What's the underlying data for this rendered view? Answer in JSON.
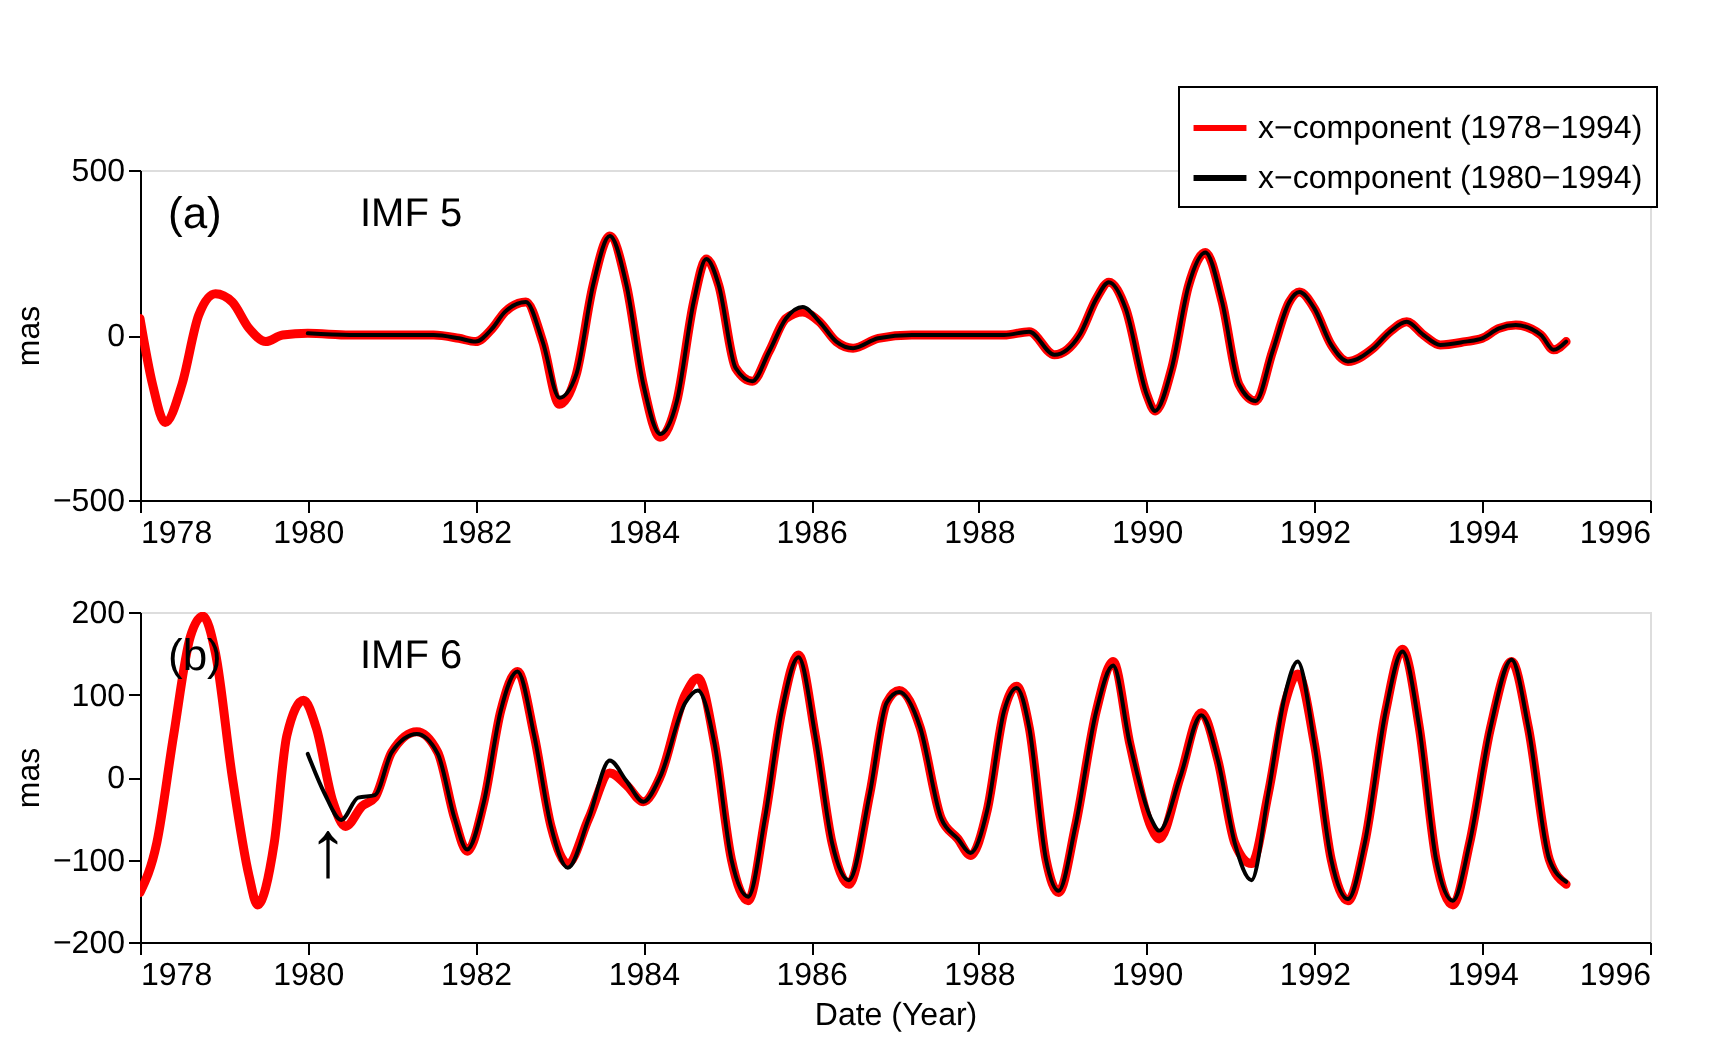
{
  "chart_data": [
    {
      "type": "line",
      "ylabel": "mas",
      "xlim": [
        1978,
        1996
      ],
      "xticks": [
        1978,
        1980,
        1982,
        1984,
        1986,
        1988,
        1990,
        1992,
        1994,
        1996
      ],
      "ylim": [
        -500,
        500
      ],
      "yticks": [
        -500,
        0,
        500
      ],
      "grid": false,
      "legend": "top right",
      "line_style": "solid",
      "marker": "none",
      "annotations": [
        "(a)",
        "IMF 5"
      ],
      "series": [
        {
          "name": "x−component (1978−1994)",
          "color": "#ff0000",
          "x": [
            1978.0,
            1978.15,
            1978.3,
            1978.5,
            1978.7,
            1978.9,
            1979.1,
            1979.3,
            1979.5,
            1979.7,
            1980.0,
            1980.5,
            1981.0,
            1981.5,
            1981.8,
            1982.0,
            1982.2,
            1982.35,
            1982.6,
            1982.8,
            1983.0,
            1983.2,
            1983.4,
            1983.6,
            1983.8,
            1984.0,
            1984.2,
            1984.4,
            1984.6,
            1984.75,
            1984.9,
            1985.1,
            1985.3,
            1985.5,
            1985.7,
            1985.9,
            1986.1,
            1986.3,
            1986.5,
            1986.8,
            1987.2,
            1987.8,
            1988.3,
            1988.6,
            1988.9,
            1989.2,
            1989.4,
            1989.55,
            1989.75,
            1990.0,
            1990.1,
            1990.3,
            1990.5,
            1990.7,
            1990.9,
            1991.1,
            1991.3,
            1991.5,
            1991.7,
            1991.82,
            1992.0,
            1992.2,
            1992.4,
            1992.7,
            1992.9,
            1993.1,
            1993.3,
            1993.5,
            1993.8,
            1994.0,
            1994.2,
            1994.4,
            1994.7,
            1994.85,
            1995.0
          ],
          "values": [
            50,
            -150,
            -265,
            -150,
            60,
            125,
            100,
            20,
            -20,
            0,
            5,
            0,
            0,
            0,
            -10,
            -20,
            20,
            70,
            100,
            -20,
            -210,
            -120,
            150,
            300,
            150,
            -150,
            -310,
            -200,
            100,
            230,
            150,
            -100,
            -140,
            -50,
            50,
            70,
            40,
            -20,
            -40,
            -10,
            0,
            0,
            0,
            10,
            -60,
            0,
            110,
            160,
            80,
            -180,
            -230,
            -100,
            150,
            250,
            100,
            -150,
            -200,
            -50,
            100,
            130,
            80,
            -30,
            -80,
            -40,
            10,
            40,
            0,
            -30,
            -20,
            -10,
            20,
            30,
            0,
            -45,
            -20
          ]
        },
        {
          "name": "x−component (1980−1994)",
          "color": "#000000",
          "x": [
            1980.0,
            1980.5,
            1981.0,
            1981.5,
            1981.8,
            1982.0,
            1982.2,
            1982.35,
            1982.6,
            1982.8,
            1983.0,
            1983.2,
            1983.4,
            1983.6,
            1983.8,
            1984.0,
            1984.2,
            1984.4,
            1984.6,
            1984.75,
            1984.9,
            1985.1,
            1985.3,
            1985.5,
            1985.7,
            1985.9,
            1986.1,
            1986.3,
            1986.5,
            1986.8,
            1987.2,
            1987.8,
            1988.3,
            1988.6,
            1988.9,
            1989.2,
            1989.4,
            1989.55,
            1989.75,
            1990.0,
            1990.1,
            1990.3,
            1990.5,
            1990.7,
            1990.9,
            1991.1,
            1991.3,
            1991.5,
            1991.7,
            1991.82,
            1992.0,
            1992.2,
            1992.4,
            1992.7,
            1992.9,
            1993.1,
            1993.3,
            1993.5,
            1993.8,
            1994.0,
            1994.2,
            1994.4,
            1994.7,
            1994.85,
            1995.0
          ],
          "values": [
            5,
            0,
            0,
            0,
            -10,
            -20,
            20,
            70,
            100,
            -20,
            -190,
            -120,
            150,
            300,
            150,
            -150,
            -300,
            -200,
            100,
            230,
            150,
            -100,
            -140,
            -50,
            50,
            85,
            40,
            -20,
            -40,
            -10,
            0,
            0,
            0,
            10,
            -60,
            0,
            110,
            160,
            80,
            -180,
            -230,
            -100,
            150,
            250,
            100,
            -150,
            -200,
            -50,
            100,
            130,
            80,
            -30,
            -80,
            -40,
            10,
            40,
            0,
            -30,
            -20,
            -10,
            20,
            30,
            0,
            -45,
            -20
          ]
        }
      ]
    },
    {
      "type": "line",
      "xlabel": "Date (Year)",
      "ylabel": "mas",
      "xlim": [
        1978,
        1996
      ],
      "xticks": [
        1978,
        1980,
        1982,
        1984,
        1986,
        1988,
        1990,
        1992,
        1994,
        1996
      ],
      "ylim": [
        -200,
        200
      ],
      "yticks": [
        -200,
        -100,
        0,
        100,
        200
      ],
      "grid": false,
      "line_style": "solid",
      "marker": "none",
      "annotations": [
        "(b)",
        "IMF 6",
        "↑"
      ],
      "series": [
        {
          "color": "#ff0000",
          "x": [
            1978.0,
            1978.2,
            1978.4,
            1978.6,
            1978.75,
            1978.9,
            1979.1,
            1979.3,
            1979.4,
            1979.6,
            1979.75,
            1979.95,
            1980.1,
            1980.3,
            1980.45,
            1980.65,
            1980.8,
            1981.0,
            1981.3,
            1981.55,
            1981.75,
            1981.9,
            1982.1,
            1982.3,
            1982.5,
            1982.7,
            1982.9,
            1983.1,
            1983.35,
            1983.6,
            1983.8,
            1984.0,
            1984.2,
            1984.5,
            1984.65,
            1984.85,
            1985.05,
            1985.25,
            1985.45,
            1985.65,
            1985.85,
            1986.05,
            1986.25,
            1986.45,
            1986.7,
            1986.9,
            1987.05,
            1987.3,
            1987.55,
            1987.75,
            1987.9,
            1988.1,
            1988.3,
            1988.45,
            1988.6,
            1988.8,
            1988.95,
            1989.15,
            1989.4,
            1989.6,
            1989.8,
            1990.05,
            1990.15,
            1990.4,
            1990.65,
            1990.85,
            1991.05,
            1991.25,
            1991.45,
            1991.65,
            1991.8,
            1992.0,
            1992.2,
            1992.4,
            1992.6,
            1992.85,
            1993.05,
            1993.25,
            1993.45,
            1993.65,
            1993.85,
            1994.1,
            1994.35,
            1994.55,
            1994.8,
            1995.0
          ],
          "values": [
            -140,
            -80,
            50,
            170,
            195,
            150,
            0,
            -120,
            -155,
            -80,
            50,
            93,
            60,
            -30,
            -60,
            -35,
            -25,
            30,
            55,
            30,
            -50,
            -90,
            -30,
            80,
            128,
            50,
            -60,
            -105,
            -50,
            5,
            -10,
            -30,
            0,
            100,
            120,
            40,
            -100,
            -150,
            -50,
            80,
            148,
            50,
            -80,
            -130,
            -20,
            90,
            105,
            60,
            -50,
            -75,
            -95,
            -40,
            80,
            110,
            60,
            -100,
            -140,
            -60,
            80,
            140,
            40,
            -60,
            -75,
            0,
            78,
            20,
            -80,
            -105,
            -20,
            90,
            125,
            40,
            -100,
            -150,
            -80,
            80,
            155,
            60,
            -100,
            -155,
            -80,
            60,
            140,
            60,
            -100,
            -130
          ]
        },
        {
          "color": "#000000",
          "x": [
            1980.0,
            1980.2,
            1980.4,
            1980.6,
            1980.8,
            1981.0,
            1981.3,
            1981.55,
            1981.75,
            1981.9,
            1982.1,
            1982.3,
            1982.5,
            1982.7,
            1982.9,
            1983.1,
            1983.35,
            1983.6,
            1983.8,
            1984.0,
            1984.2,
            1984.5,
            1984.65,
            1984.85,
            1985.05,
            1985.25,
            1985.45,
            1985.65,
            1985.85,
            1986.05,
            1986.25,
            1986.45,
            1986.7,
            1986.9,
            1987.05,
            1987.3,
            1987.55,
            1987.75,
            1987.9,
            1988.1,
            1988.3,
            1988.45,
            1988.6,
            1988.8,
            1988.95,
            1989.15,
            1989.4,
            1989.6,
            1989.8,
            1990.05,
            1990.15,
            1990.4,
            1990.65,
            1990.85,
            1991.05,
            1991.25,
            1991.45,
            1991.65,
            1991.8,
            1992.0,
            1992.2,
            1992.4,
            1992.6,
            1992.85,
            1993.05,
            1993.25,
            1993.45,
            1993.65,
            1993.85,
            1994.1,
            1994.35,
            1994.55,
            1994.8,
            1995.0
          ],
          "values": [
            28,
            -20,
            -52,
            -25,
            -22,
            30,
            52,
            28,
            -50,
            -88,
            -30,
            80,
            128,
            50,
            -60,
            -110,
            -50,
            20,
            -5,
            -30,
            0,
            90,
            105,
            40,
            -100,
            -145,
            -50,
            80,
            145,
            50,
            -80,
            -125,
            -20,
            90,
            103,
            60,
            -50,
            -75,
            -92,
            -40,
            80,
            108,
            60,
            -100,
            -138,
            -60,
            80,
            135,
            40,
            -50,
            -65,
            0,
            75,
            20,
            -80,
            -125,
            -20,
            100,
            140,
            40,
            -100,
            -148,
            -80,
            80,
            152,
            60,
            -100,
            -150,
            -80,
            60,
            142,
            60,
            -100,
            -127
          ]
        }
      ]
    }
  ]
}
